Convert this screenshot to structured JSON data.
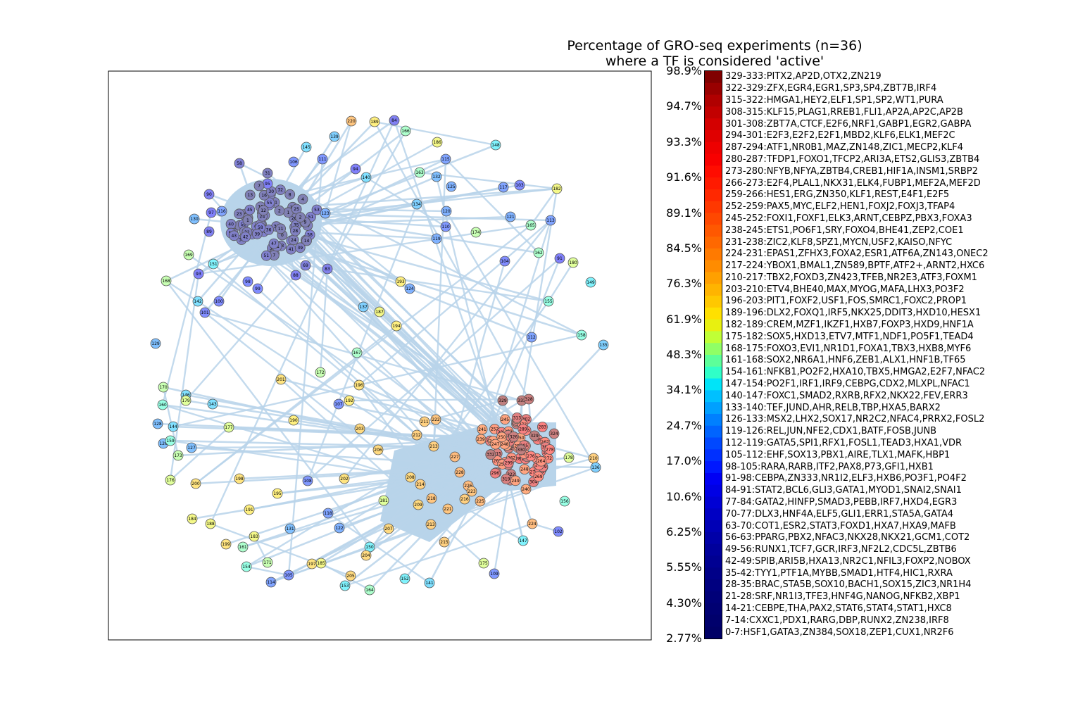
{
  "figure": {
    "title_line1": "Percentage of GRO-seq experiments (n=36)",
    "title_line2": "where a TF is considered 'active'"
  },
  "colorbar": {
    "ticks": [
      "98.9%",
      "94.7%",
      "93.3%",
      "91.6%",
      "89.1%",
      "84.5%",
      "76.3%",
      "61.9%",
      "48.3%",
      "34.1%",
      "24.7%",
      "17.0%",
      "10.6%",
      "6.25%",
      "5.55%",
      "4.30%",
      "2.77%"
    ],
    "bins": [
      {
        "label": "329-333:PITX2,AP2D,OTX2,ZN219",
        "color": "#800000"
      },
      {
        "label": "322-329:ZFX,EGR4,EGR1,SP3,SP4,ZBT7B,IRF4",
        "color": "#990000"
      },
      {
        "label": "315-322:HMGA1,HEY2,ELF1,SP1,SP2,WT1,PURA",
        "color": "#b00000"
      },
      {
        "label": "308-315:KLF15,PLAG1,RREB1,FLI1,AP2A,AP2C,AP2B",
        "color": "#c20000"
      },
      {
        "label": "301-308:ZBT7A,CTCF,E2F6,NRF1,GABP1,EGR2,GABPA",
        "color": "#d40000"
      },
      {
        "label": "294-301:E2F3,E2F2,E2F1,MBD2,KLF6,ELK1,MEF2C",
        "color": "#e00000"
      },
      {
        "label": "287-294:ATF1,NR0B1,MAZ,ZN148,ZIC1,MECP2,KLF4",
        "color": "#ee0000"
      },
      {
        "label": "280-287:TFDP1,FOXO1,TFCP2,ARI3A,ETS2,GLIS3,ZBTB4",
        "color": "#f80000"
      },
      {
        "label": "273-280:NFYB,NFYA,ZBTB4,CREB1,HIF1A,INSM1,SRBP2",
        "color": "#ff0c00"
      },
      {
        "label": "266-273:E2F4,PLAL1,NKX31,ELK4,FUBP1,MEF2A,MEF2D",
        "color": "#ff1a00"
      },
      {
        "label": "259-266:HES1,ERG,ZN350,KLF1,REST,E4F1,E2F5",
        "color": "#ff2800"
      },
      {
        "label": "252-259:PAX5,MYC,ELF2,HEN1,FOXJ2,FOXJ3,TFAP4",
        "color": "#ff3800"
      },
      {
        "label": "245-252:FOXI1,FOXF1,ELK3,ARNT,CEBPZ,PBX3,FOXA3",
        "color": "#ff4800"
      },
      {
        "label": "238-245:ETS1,PO6F1,SRY,FOXO4,BHE41,ZEP2,COE1",
        "color": "#ff5800"
      },
      {
        "label": "231-238:ZIC2,KLF8,SPZ1,MYCN,USF2,KAISO,NFYC",
        "color": "#ff6800"
      },
      {
        "label": "224-231:EPAS1,ZFHX3,FOXA2,ESR1,ATF6A,ZN143,ONEC2",
        "color": "#ff7a00"
      },
      {
        "label": "217-224:YBOX1,BMAL1,ZN589,BPTF,ATF2+,ARNT2,HXC6",
        "color": "#ff8c00"
      },
      {
        "label": "210-217:TBX2,FOXD3,ZN423,TFEB,NR2E3,ATF3,FOXM1",
        "color": "#ffa000"
      },
      {
        "label": "203-210:ETV4,BHE40,MAX,MYOG,MAFA,LHX3,PO3F2",
        "color": "#ffb400"
      },
      {
        "label": "196-203:PIT1,FOXF2,USF1,FOS,SMRC1,FOXC2,PROP1",
        "color": "#ffc800"
      },
      {
        "label": "189-196:DLX2,FOXQ1,IRF5,NKX25,DDIT3,HXD10,HESX1",
        "color": "#ffe000"
      },
      {
        "label": "182-189:CREM,MZF1,IKZF1,HXB7,FOXP3,HXD9,HNF1A",
        "color": "#e8f010"
      },
      {
        "label": "175-182:SOX5,HXD13,ETV7,MTF1,NDF1,PO5F1,TEAD4",
        "color": "#c0ff36"
      },
      {
        "label": "168-175:FOXO3,EVI1,NR1D1,FOXA1,TBX3,HXB8,MYF6",
        "color": "#90ff66"
      },
      {
        "label": "161-168:SOX2,NR6A1,HNF6,ZEB1,ALX1,HNF1B,TF65",
        "color": "#5cff9a"
      },
      {
        "label": "154-161:NFKB1,PO2F2,HXA10,TBX5,HMGA2,E2F7,NFAC2",
        "color": "#30ffc8"
      },
      {
        "label": "147-154:PO2F1,IRF1,IRF9,CEBPG,CDX2,MLXPL,NFAC1",
        "color": "#00e4f8"
      },
      {
        "label": "140-147:FOXC1,SMAD2,RXRB,RFX2,NKX22,FEV,ERR3",
        "color": "#00c0ff"
      },
      {
        "label": "133-140:TEF,JUND,AHR,RELB,TBP,HXA5,BARX2",
        "color": "#00a0ff"
      },
      {
        "label": "126-133:MSX2,LHX2,SOX17,NR2C2,NFAC4,PRRX2,FOSL2",
        "color": "#0080ff"
      },
      {
        "label": "119-126:REL,JUN,NFE2,CDX1,BATF,FOSB,JUNB",
        "color": "#0064ff"
      },
      {
        "label": "112-119:GATA5,SPI1,RFX1,FOSL1,TEAD3,HXA1,VDR",
        "color": "#0048ff"
      },
      {
        "label": "105-112:EHF,SOX13,PBX1,AIRE,TLX1,MAFK,HBP1",
        "color": "#0030ff"
      },
      {
        "label": "98-105:RARA,RARB,ITF2,PAX8,P73,GFI1,HXB1",
        "color": "#0018ff"
      },
      {
        "label": "91-98:CEBPA,ZN333,NR1I2,ELF3,HXB6,PO3F1,PO4F2",
        "color": "#0000f4"
      },
      {
        "label": "84-91:STAT2,BCL6,GLI3,GATA1,MYOD1,SNAI2,SNAI1",
        "color": "#0000e4"
      },
      {
        "label": "77-84:GATA2,HINFP,SMAD3,PEBB,IRF7,HXD4,EGR3",
        "color": "#0000d4"
      },
      {
        "label": "70-77:DLX3,HNF4A,ELF5,GLI1,ERR1,STA5A,GATA4",
        "color": "#0000c4"
      },
      {
        "label": "63-70:COT1,ESR2,STAT3,FOXD1,HXA7,HXA9,MAFB",
        "color": "#0000b6"
      },
      {
        "label": "56-63:PPARG,PBX2,NFAC3,NKX28,NKX21,GCM1,COT2",
        "color": "#0000a8"
      },
      {
        "label": "49-56:RUNX1,TCF7,GCR,IRF3,NF2L2,CDC5L,ZBTB6",
        "color": "#00009c"
      },
      {
        "label": "42-49:SPIB,ARI5B,HXA13,NR2C1,NFIL3,FOXP2,NOBOX",
        "color": "#000092"
      },
      {
        "label": "35-42:TYY1,PTF1A,MYBB,SMAD1,HTF4,HIC1,RXRA",
        "color": "#000088"
      },
      {
        "label": "28-35:BRAC,STA5B,SOX10,BACH1,SOX15,ZIC3,NR1H4",
        "color": "#000080"
      },
      {
        "label": "21-28:SRF,NR1I3,TFE3,HNF4G,NANOG,NFKB2,XBP1",
        "color": "#000078"
      },
      {
        "label": "14-21:CEBPE,THA,PAX2,STAT6,STAT4,STAT1,HXC8",
        "color": "#000072"
      },
      {
        "label": "7-14:CXXC1,PDX1,RARG,DBP,RUNX2,ZN238,IRF8",
        "color": "#00006c"
      },
      {
        "label": "0-7:HSF1,GATA3,ZN384,SOX18,ZEP1,CUX1,NR2F6",
        "color": "#000066"
      }
    ]
  },
  "network": {
    "edge_color": "#b8d4ea",
    "node_labels": [
      "220",
      "189",
      "84",
      "166",
      "139",
      "145",
      "186",
      "148",
      "115",
      "163",
      "132",
      "125",
      "117",
      "103",
      "182",
      "140",
      "94",
      "111",
      "106",
      "58",
      "31",
      "95",
      "7",
      "4",
      "90",
      "97",
      "116",
      "130",
      "89",
      "53",
      "123",
      "134",
      "120",
      "121",
      "113",
      "165",
      "174",
      "110",
      "119",
      "169",
      "151",
      "93",
      "168",
      "98",
      "99",
      "83",
      "88",
      "69",
      "104",
      "91",
      "180",
      "162",
      "149",
      "193",
      "124",
      "155",
      "142",
      "100",
      "101",
      "137",
      "187",
      "194",
      "112",
      "158",
      "135",
      "129",
      "167",
      "172",
      "201",
      "196",
      "170",
      "146",
      "179",
      "143",
      "107",
      "192",
      "160",
      "128",
      "144",
      "126",
      "159",
      "127",
      "177",
      "190",
      "203",
      "211",
      "222",
      "241",
      "239",
      "329",
      "333",
      "328",
      "324",
      "212",
      "213",
      "227",
      "206",
      "173",
      "176",
      "200",
      "198",
      "202",
      "108",
      "195",
      "208",
      "214",
      "228",
      "226",
      "223",
      "240",
      "178",
      "210",
      "136",
      "156",
      "191",
      "181",
      "216",
      "225",
      "218",
      "221",
      "209",
      "184",
      "188",
      "118",
      "131",
      "122",
      "207",
      "213b",
      "215",
      "224",
      "102",
      "183",
      "199",
      "161",
      "150",
      "204",
      "147",
      "171",
      "154",
      "197",
      "185",
      "205",
      "175",
      "109",
      "114",
      "105",
      "153",
      "164",
      "152",
      "141"
    ]
  }
}
